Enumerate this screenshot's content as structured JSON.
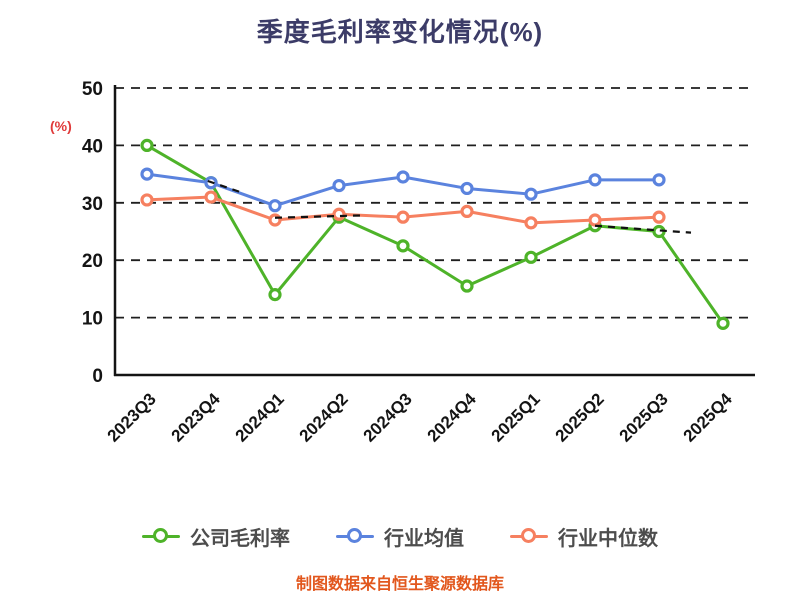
{
  "page": {
    "title": "季度毛利率变化情况(%)",
    "y_axis_unit": "(%)",
    "caption": "制图数据来自恒生聚源数据库"
  },
  "colors": {
    "title": "#3c3c68",
    "caption": "#e2571d",
    "axis_unit": "#e03a3a",
    "axis": "#141414",
    "grid": "#1f1f1f",
    "legend_text": "#4d4d4d",
    "company": "#4eb329",
    "industry_avg": "#5b83de",
    "industry_median": "#f68060"
  },
  "chart_data": {
    "type": "line",
    "title": "季度毛利率变化情况(%)",
    "ylabel": "(%)",
    "categories": [
      "2023Q3",
      "2023Q4",
      "2024Q1",
      "2024Q2",
      "2024Q3",
      "2024Q4",
      "2025Q1",
      "2025Q2",
      "2025Q3",
      "2025Q4"
    ],
    "series": [
      {
        "key": "company-gross-margin",
        "name": "公司毛利率",
        "color_key": "company",
        "values": [
          40,
          33.5,
          14,
          27.5,
          22.5,
          15.5,
          20.5,
          26,
          25,
          9
        ]
      },
      {
        "key": "industry-average",
        "name": "行业均值",
        "color_key": "industry_avg",
        "values": [
          35,
          33.5,
          29.5,
          33,
          34.5,
          32.5,
          31.5,
          34,
          34,
          null
        ]
      },
      {
        "key": "industry-median",
        "name": "行业中位数",
        "color_key": "industry_median",
        "values": [
          30.5,
          31,
          27,
          28,
          27.5,
          28.5,
          26.5,
          27,
          27.5,
          null
        ]
      }
    ],
    "ylim": [
      0,
      50
    ],
    "yticks": [
      0,
      10,
      20,
      30,
      40,
      50
    ],
    "grid": "dashed-horizontal",
    "legend_position": "bottom",
    "marker": "open-circle",
    "dashed_overlay_segments": [
      [
        [
          0.95,
          33.8
        ],
        [
          1.45,
          31.9
        ]
      ],
      [
        [
          2.0,
          27.4
        ],
        [
          3.35,
          27.8
        ]
      ],
      [
        [
          7.0,
          26.0
        ],
        [
          8.5,
          24.8
        ]
      ]
    ]
  }
}
